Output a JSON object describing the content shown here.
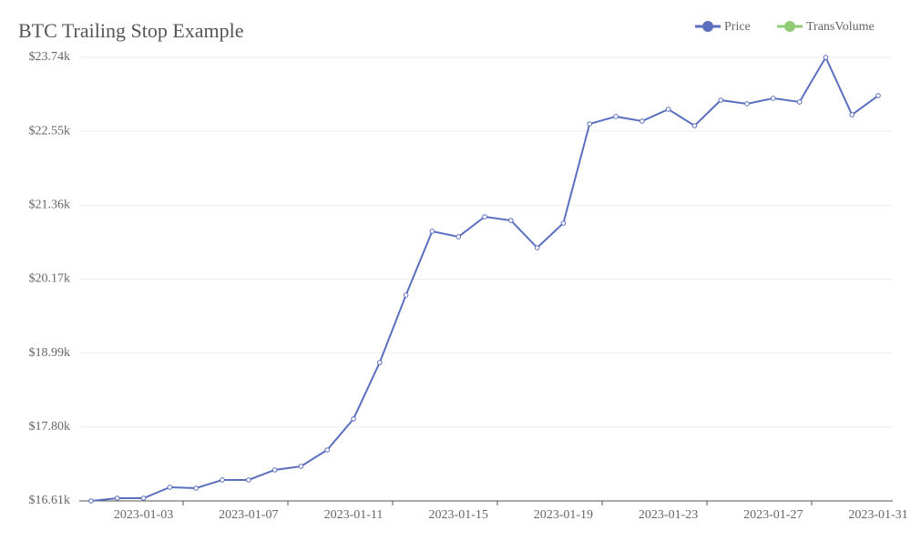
{
  "chart_data": {
    "type": "line",
    "title": "BTC Trailing Stop Example",
    "categories": [
      null,
      null,
      "2023-01-03",
      null,
      null,
      null,
      "2023-01-07",
      null,
      null,
      null,
      "2023-01-11",
      null,
      null,
      null,
      "2023-01-15",
      null,
      null,
      null,
      "2023-01-19",
      null,
      null,
      null,
      "2023-01-23",
      null,
      null,
      null,
      "2023-01-27",
      null,
      null,
      null,
      "2023-01-31"
    ],
    "series": [
      {
        "name": "Price",
        "color": "#5b6fbf",
        "values": [
          16610,
          16654,
          16654,
          16830,
          16815,
          16947,
          16947,
          17108,
          17166,
          17430,
          17928,
          18835,
          19919,
          20944,
          20856,
          21178,
          21119,
          20680,
          21075,
          22671,
          22789,
          22715,
          22906,
          22642,
          23052,
          22994,
          23082,
          23023,
          23740,
          22818,
          23125
        ]
      },
      {
        "name": "TransVolume",
        "color": "#91cc75"
      }
    ],
    "ylim": [
      16610,
      23740
    ],
    "yticks": [
      {
        "value": 16610,
        "label": "$16.61k"
      },
      {
        "value": 17798.33,
        "label": "$17.80k"
      },
      {
        "value": 18986.67,
        "label": "$18.99k"
      },
      {
        "value": 20175,
        "label": "$20.17k"
      },
      {
        "value": 21363.33,
        "label": "$21.36k"
      },
      {
        "value": 22551.67,
        "label": "$22.55k"
      },
      {
        "value": 23740,
        "label": "$23.74k"
      }
    ],
    "grid": true,
    "legend": "top-right"
  }
}
